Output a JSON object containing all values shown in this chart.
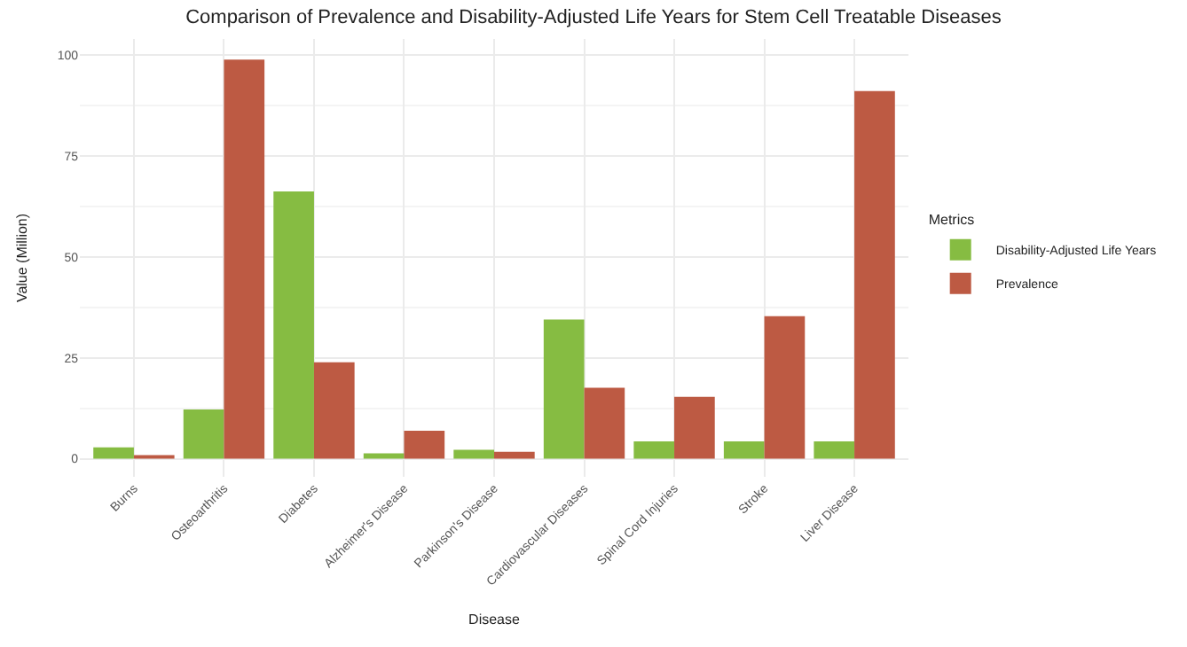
{
  "chart_data": {
    "type": "bar",
    "title": "Comparison of Prevalence and Disability-Adjusted Life Years for Stem Cell Treatable Diseases",
    "xlabel": "Disease",
    "ylabel": "Value (Million)",
    "legend_title": "Metrics",
    "categories": [
      "Burns",
      "Osteoarthritis",
      "Diabetes",
      "Alzheimer's Disease",
      "Parkinson's Disease",
      "Cardiovascular Diseases",
      "Spinal Cord Injuries",
      "Stroke",
      "Liver Disease"
    ],
    "series": [
      {
        "name": "Disability-Adjusted Life Years",
        "color": "#86bc42",
        "values": [
          2.8,
          12.2,
          66.2,
          1.3,
          2.2,
          34.5,
          4.3,
          4.3,
          4.3
        ]
      },
      {
        "name": "Prevalence",
        "color": "#bd5a43",
        "values": [
          0.9,
          98.9,
          23.9,
          6.9,
          1.7,
          17.6,
          15.3,
          35.3,
          91.1
        ]
      }
    ],
    "ylim": [
      -4.5,
      104
    ],
    "yticks": [
      0,
      25,
      50,
      75,
      100
    ],
    "grid": true,
    "legend": "right"
  }
}
